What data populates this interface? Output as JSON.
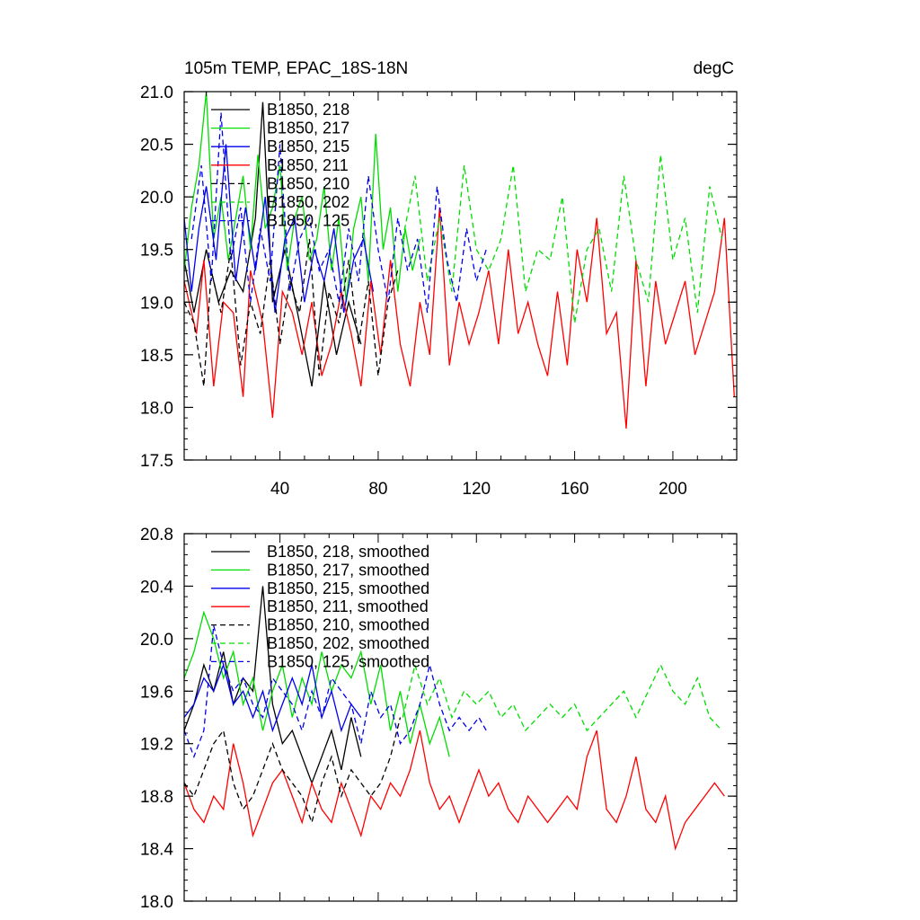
{
  "chart_data": [
    {
      "type": "line",
      "title": "105m TEMP, EPAC_18S-18N",
      "units": "degC",
      "xlim": [
        1,
        226
      ],
      "ylim": [
        17.5,
        21.0
      ],
      "xticks": [
        40,
        80,
        120,
        160,
        200
      ],
      "yticks": [
        17.5,
        18.0,
        18.5,
        19.0,
        19.5,
        20.0,
        20.5,
        21.0
      ],
      "ytick_labels": [
        "17.5",
        "18.0",
        "18.5",
        "19.0",
        "19.5",
        "20.0",
        "20.5",
        "21.0"
      ],
      "xtick_labels": [
        "40",
        "80",
        "120",
        "160",
        "200"
      ],
      "legend_position": "top-left",
      "series": [
        {
          "name": "B1850, 218",
          "color": "#000000",
          "dash": "solid",
          "x": [
            1,
            5,
            10,
            15,
            20,
            25,
            30,
            33,
            37,
            42,
            48,
            53,
            58,
            63,
            68,
            73
          ],
          "values": [
            19.4,
            18.9,
            19.5,
            19.0,
            19.3,
            19.1,
            19.8,
            20.9,
            19.0,
            19.5,
            18.8,
            18.2,
            19.2,
            18.5,
            19.0,
            18.6
          ]
        },
        {
          "name": "B1850, 217",
          "color": "#00dd00",
          "dash": "solid",
          "x": [
            1,
            4,
            7,
            10,
            13,
            16,
            19,
            22,
            25,
            28,
            31,
            34,
            37,
            40,
            43,
            46,
            49,
            52,
            55,
            58,
            61,
            64,
            67,
            70,
            73,
            76,
            79,
            82,
            85,
            88,
            91,
            94,
            97
          ],
          "values": [
            19.3,
            19.9,
            20.3,
            21.0,
            19.6,
            20.0,
            19.4,
            19.8,
            20.2,
            19.5,
            20.4,
            19.7,
            19.9,
            20.3,
            19.3,
            19.8,
            20.0,
            19.4,
            19.6,
            20.1,
            19.3,
            19.8,
            19.0,
            19.7,
            20.0,
            19.2,
            20.6,
            19.5,
            19.9,
            19.1,
            19.7,
            19.3,
            19.6
          ]
        },
        {
          "name": "B1850, 215",
          "color": "#0000ee",
          "dash": "solid",
          "x": [
            1,
            4,
            7,
            10,
            14,
            18,
            22,
            26,
            30,
            34,
            38,
            42,
            46,
            50,
            54,
            58,
            62,
            66,
            70,
            74,
            78
          ],
          "values": [
            19.8,
            19.1,
            19.7,
            20.1,
            19.4,
            20.5,
            19.2,
            19.9,
            19.3,
            20.0,
            18.9,
            19.6,
            19.8,
            19.0,
            19.5,
            19.2,
            19.7,
            18.9,
            19.4,
            19.6,
            19.1
          ]
        },
        {
          "name": "B1850, 211",
          "color": "#ff0000",
          "dash": "solid",
          "x": [
            1,
            6,
            9,
            13,
            17,
            21,
            25,
            28,
            33,
            37,
            41,
            45,
            49,
            53,
            57,
            61,
            65,
            69,
            73,
            77,
            81,
            85,
            89,
            93,
            97,
            101,
            105,
            109,
            113,
            117,
            121,
            125,
            129,
            133,
            137,
            141,
            145,
            149,
            153,
            157,
            161,
            165,
            169,
            173,
            177,
            181,
            185,
            189,
            193,
            197,
            201,
            205,
            209,
            213,
            217,
            221,
            225
          ],
          "values": [
            19.2,
            18.7,
            19.4,
            18.2,
            19.0,
            18.9,
            18.1,
            19.3,
            18.8,
            17.9,
            19.1,
            18.9,
            18.5,
            19.0,
            18.3,
            18.6,
            19.1,
            18.7,
            18.2,
            19.2,
            18.5,
            19.4,
            18.6,
            18.2,
            19.0,
            18.5,
            19.9,
            18.4,
            19.0,
            18.6,
            18.9,
            19.3,
            18.6,
            19.5,
            18.7,
            19.0,
            18.6,
            18.3,
            19.1,
            18.4,
            19.5,
            19.0,
            19.8,
            18.7,
            18.9,
            17.8,
            19.4,
            18.2,
            19.2,
            18.6,
            18.9,
            19.2,
            18.5,
            18.8,
            19.1,
            19.8,
            18.1
          ]
        },
        {
          "name": "B1850, 210",
          "color": "#000000",
          "dash": "dashed",
          "x": [
            1,
            5,
            9,
            12,
            16,
            20,
            24,
            28,
            32,
            36,
            40,
            44,
            48,
            52,
            56,
            60,
            64,
            68,
            72,
            76,
            80,
            84,
            88
          ],
          "values": [
            19.0,
            18.8,
            18.2,
            19.3,
            18.9,
            19.5,
            18.4,
            19.0,
            18.7,
            19.4,
            18.6,
            19.2,
            18.9,
            19.6,
            18.3,
            19.1,
            18.8,
            19.4,
            18.6,
            19.2,
            18.3,
            19.0,
            19.3
          ]
        },
        {
          "name": "B1850, 202",
          "color": "#00dd00",
          "dash": "dashed",
          "x": [
            90,
            95,
            100,
            105,
            110,
            115,
            120,
            125,
            130,
            135,
            140,
            145,
            150,
            155,
            160,
            165,
            170,
            175,
            180,
            185,
            190,
            195,
            200,
            205,
            210,
            215,
            220
          ],
          "values": [
            19.6,
            20.2,
            19.2,
            19.8,
            19.1,
            20.3,
            19.5,
            19.3,
            19.6,
            20.3,
            19.1,
            19.5,
            19.4,
            20.0,
            18.8,
            19.5,
            19.7,
            19.1,
            20.2,
            19.4,
            19.0,
            20.4,
            19.4,
            19.8,
            18.9,
            20.1,
            19.6
          ]
        },
        {
          "name": "B1850, 125",
          "color": "#0000ee",
          "dash": "dashed",
          "x": [
            4,
            8,
            12,
            16,
            20,
            24,
            28,
            32,
            36,
            40,
            44,
            48,
            52,
            56,
            60,
            64,
            68,
            72,
            76,
            80,
            84,
            88,
            92,
            96,
            100,
            104,
            108,
            112,
            116,
            120,
            124
          ],
          "values": [
            19.6,
            20.3,
            19.2,
            20.8,
            19.4,
            19.9,
            19.0,
            19.7,
            19.2,
            20.5,
            19.1,
            19.6,
            19.8,
            19.3,
            19.5,
            19.0,
            19.7,
            19.2,
            20.2,
            19.5,
            19.0,
            19.8,
            19.3,
            19.6,
            18.9,
            20.1,
            19.4,
            19.0,
            19.7,
            19.2,
            19.5
          ]
        }
      ]
    },
    {
      "type": "line",
      "xlim": [
        1,
        226
      ],
      "ylim": [
        18.0,
        20.8
      ],
      "xticks": [
        40,
        80,
        120,
        160,
        200
      ],
      "yticks": [
        18.0,
        18.4,
        18.8,
        19.2,
        19.6,
        20.0,
        20.4,
        20.8
      ],
      "ytick_labels": [
        "18.0",
        "18.4",
        "18.8",
        "19.2",
        "19.6",
        "20.0",
        "20.4",
        "20.8"
      ],
      "xtick_labels": [],
      "legend_position": "top-left",
      "series": [
        {
          "name": "B1850, 218, smoothed",
          "color": "#000000",
          "dash": "solid",
          "x": [
            1,
            5,
            9,
            13,
            17,
            21,
            25,
            29,
            33,
            37,
            41,
            45,
            49,
            53,
            57,
            61,
            65,
            69,
            73
          ],
          "values": [
            19.3,
            19.5,
            19.8,
            19.6,
            19.9,
            19.5,
            19.7,
            19.6,
            20.4,
            19.5,
            19.2,
            19.3,
            19.1,
            18.9,
            19.1,
            19.3,
            19.0,
            19.4,
            19.1
          ]
        },
        {
          "name": "B1850, 217, smoothed",
          "color": "#00dd00",
          "dash": "solid",
          "x": [
            1,
            5,
            9,
            13,
            17,
            21,
            25,
            29,
            33,
            37,
            41,
            45,
            49,
            53,
            57,
            61,
            65,
            69,
            73,
            77,
            81,
            85,
            89,
            93,
            97,
            101,
            105,
            109
          ],
          "values": [
            19.7,
            19.9,
            20.2,
            20.0,
            19.7,
            19.9,
            19.5,
            19.7,
            19.3,
            19.6,
            19.8,
            19.4,
            19.7,
            19.5,
            19.9,
            19.6,
            19.8,
            19.7,
            19.9,
            19.5,
            19.8,
            19.3,
            19.6,
            19.2,
            19.5,
            19.2,
            19.4,
            19.1
          ]
        },
        {
          "name": "B1850, 215, smoothed",
          "color": "#0000ee",
          "dash": "solid",
          "x": [
            1,
            5,
            9,
            13,
            17,
            21,
            25,
            29,
            33,
            37,
            41,
            45,
            49,
            53,
            57,
            61,
            65,
            69,
            73
          ],
          "values": [
            19.4,
            19.5,
            19.7,
            19.6,
            19.8,
            19.5,
            19.6,
            19.4,
            19.6,
            19.3,
            19.5,
            19.7,
            19.5,
            19.8,
            19.4,
            19.6,
            19.3,
            19.5,
            19.4
          ]
        },
        {
          "name": "B1850, 211, smoothed",
          "color": "#ff0000",
          "dash": "solid",
          "x": [
            1,
            5,
            9,
            13,
            17,
            21,
            25,
            29,
            33,
            37,
            41,
            45,
            49,
            53,
            57,
            61,
            65,
            69,
            73,
            77,
            81,
            85,
            89,
            93,
            97,
            101,
            105,
            109,
            113,
            117,
            121,
            125,
            129,
            133,
            137,
            141,
            145,
            149,
            153,
            157,
            161,
            165,
            169,
            173,
            177,
            181,
            185,
            189,
            193,
            197,
            201,
            205,
            209,
            213,
            217,
            221
          ],
          "values": [
            18.9,
            18.7,
            18.6,
            18.8,
            18.7,
            19.2,
            18.9,
            18.5,
            18.7,
            18.9,
            19.0,
            18.8,
            18.6,
            18.9,
            18.7,
            18.6,
            18.9,
            18.7,
            18.5,
            18.8,
            18.7,
            18.9,
            18.8,
            19.0,
            19.3,
            18.9,
            18.7,
            18.8,
            18.6,
            18.8,
            19.0,
            18.8,
            18.9,
            18.7,
            18.6,
            18.8,
            18.7,
            18.6,
            18.7,
            18.8,
            18.7,
            19.1,
            19.3,
            18.7,
            18.6,
            18.8,
            19.1,
            18.7,
            18.6,
            18.8,
            18.4,
            18.6,
            18.7,
            18.8,
            18.9,
            18.8
          ]
        },
        {
          "name": "B1850, 210, smoothed",
          "color": "#000000",
          "dash": "dashed",
          "x": [
            1,
            5,
            9,
            13,
            17,
            21,
            25,
            29,
            33,
            37,
            41,
            45,
            49,
            53,
            57,
            61,
            65,
            69,
            73,
            77,
            81,
            85,
            89
          ],
          "values": [
            18.9,
            18.8,
            19.0,
            19.2,
            19.3,
            18.9,
            18.7,
            18.8,
            19.0,
            19.2,
            19.0,
            18.9,
            18.8,
            18.6,
            18.9,
            19.1,
            18.8,
            19.0,
            18.9,
            18.8,
            18.9,
            19.1,
            19.4
          ]
        },
        {
          "name": "B1850, 202, smoothed",
          "color": "#00dd00",
          "dash": "dashed",
          "x": [
            90,
            95,
            100,
            105,
            110,
            115,
            120,
            125,
            130,
            135,
            140,
            145,
            150,
            155,
            160,
            165,
            170,
            175,
            180,
            185,
            190,
            195,
            200,
            205,
            210,
            215,
            220
          ],
          "values": [
            19.4,
            19.8,
            19.5,
            19.7,
            19.4,
            19.6,
            19.5,
            19.6,
            19.4,
            19.5,
            19.3,
            19.4,
            19.5,
            19.4,
            19.5,
            19.3,
            19.4,
            19.5,
            19.6,
            19.4,
            19.6,
            19.8,
            19.6,
            19.5,
            19.7,
            19.4,
            19.3
          ]
        },
        {
          "name": "B1850, 125, smoothed",
          "color": "#0000ee",
          "dash": "dashed",
          "x": [
            1,
            5,
            9,
            13,
            17,
            21,
            25,
            29,
            33,
            37,
            41,
            45,
            49,
            53,
            57,
            61,
            65,
            69,
            73,
            77,
            81,
            85,
            89,
            93,
            97,
            101,
            105,
            109,
            113,
            117,
            121,
            124
          ],
          "values": [
            19.3,
            19.1,
            19.3,
            20.1,
            19.8,
            19.6,
            19.7,
            19.5,
            19.4,
            19.7,
            19.6,
            19.5,
            19.3,
            19.6,
            19.4,
            19.7,
            19.6,
            19.5,
            19.2,
            19.6,
            19.4,
            19.5,
            19.2,
            19.3,
            19.5,
            19.8,
            19.5,
            19.3,
            19.4,
            19.3,
            19.4,
            19.3
          ]
        }
      ]
    }
  ]
}
